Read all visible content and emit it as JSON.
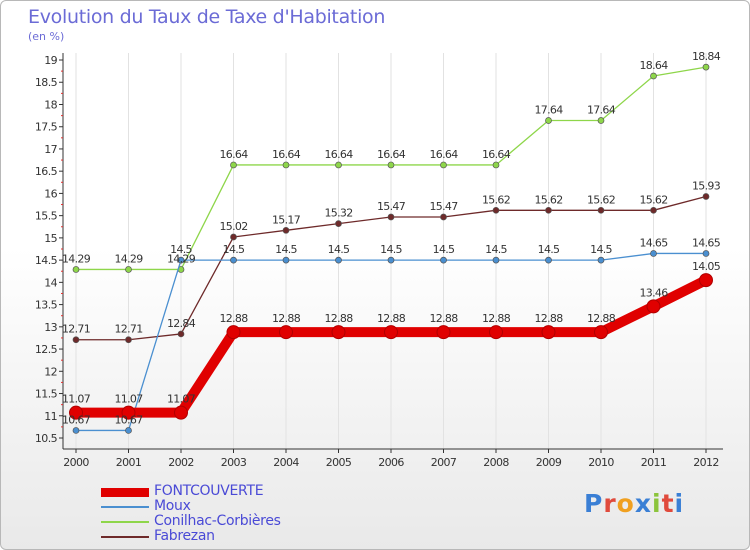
{
  "title": "Evolution du Taux de Taxe d'Habitation",
  "unit": "(en %)",
  "logo": {
    "letters": [
      "P",
      "r",
      "o",
      "x",
      "i",
      "t",
      "i"
    ],
    "colors": [
      "#3a7fd5",
      "#e04a3c",
      "#f0a020",
      "#3a7fd5",
      "#8cc43c",
      "#e04a3c",
      "#3a7fd5"
    ]
  },
  "chart_data": {
    "type": "line",
    "x": [
      "2000",
      "2001",
      "2002",
      "2003",
      "2004",
      "2005",
      "2006",
      "2007",
      "2008",
      "2009",
      "2010",
      "2011",
      "2012"
    ],
    "ylim": [
      10.5,
      19
    ],
    "yticks": [
      "10.5",
      "11",
      "11.5",
      "12",
      "12.5",
      "13",
      "13.5",
      "14",
      "14.5",
      "15",
      "15.5",
      "16",
      "16.5",
      "17",
      "17.5",
      "18",
      "18.5",
      "19"
    ],
    "grid": "vertical",
    "legend_position": "bottom-left",
    "series": [
      {
        "name": "FONTCOUVERTE",
        "color": "#e00000",
        "values": [
          11.07,
          11.07,
          11.07,
          12.88,
          12.88,
          12.88,
          12.88,
          12.88,
          12.88,
          12.88,
          12.88,
          13.46,
          14.05
        ],
        "labels": [
          "11.07",
          "11.07",
          "11.07",
          "12.88",
          "12.88",
          "12.88",
          "12.88",
          "12.88",
          "12.88",
          "12.88",
          "12.88",
          "13.46",
          "14.05"
        ]
      },
      {
        "name": "Moux",
        "color": "#4a8fd0",
        "values": [
          10.67,
          10.67,
          14.5,
          14.5,
          14.5,
          14.5,
          14.5,
          14.5,
          14.5,
          14.5,
          14.5,
          14.65,
          14.65
        ],
        "labels": [
          "10.67",
          "10.67",
          "14.5",
          "14.5",
          "14.5",
          "14.5",
          "14.5",
          "14.5",
          "14.5",
          "14.5",
          "14.5",
          "14.65",
          "14.65"
        ]
      },
      {
        "name": "Conilhac-Corbières",
        "color": "#8ed64a",
        "values": [
          14.29,
          14.29,
          14.29,
          16.64,
          16.64,
          16.64,
          16.64,
          16.64,
          16.64,
          17.64,
          17.64,
          18.64,
          18.84
        ],
        "labels": [
          "14.29",
          "14.29",
          "14.29",
          "16.64",
          "16.64",
          "16.64",
          "16.64",
          "16.64",
          "16.64",
          "17.64",
          "17.64",
          "18.64",
          "18.84"
        ]
      },
      {
        "name": "Fabrezan",
        "color": "#6e2a2a",
        "values": [
          12.71,
          12.71,
          12.84,
          15.02,
          15.17,
          15.32,
          15.47,
          15.47,
          15.62,
          15.62,
          15.62,
          15.62,
          15.93
        ],
        "labels": [
          "12.71",
          "12.71",
          "12.84",
          "15.02",
          "15.17",
          "15.32",
          "15.47",
          "15.47",
          "15.62",
          "15.62",
          "15.62",
          "15.62",
          "15.93"
        ]
      }
    ]
  }
}
